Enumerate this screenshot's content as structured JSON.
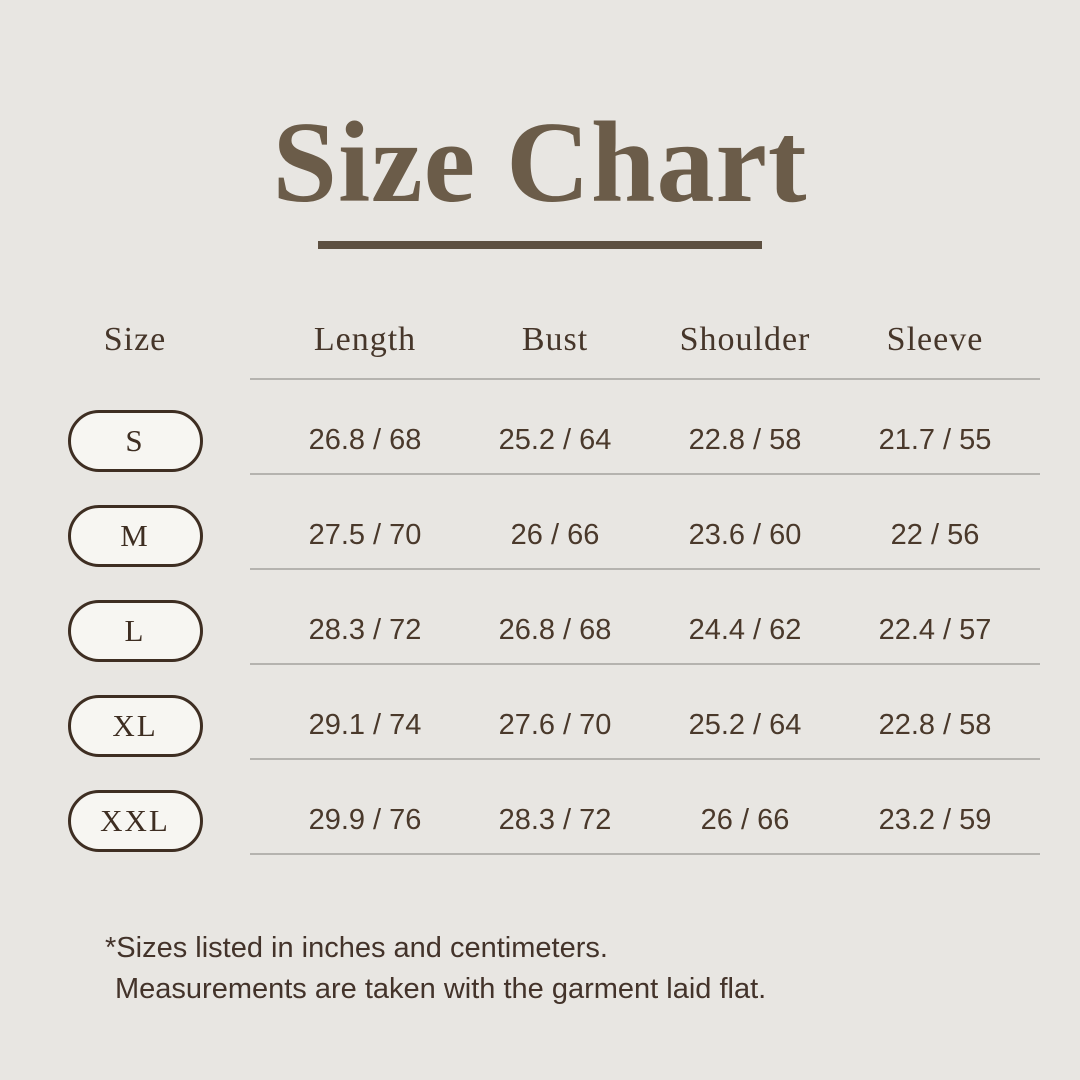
{
  "title": "Size Chart",
  "table": {
    "headers": [
      "Size",
      "Length",
      "Bust",
      "Shoulder",
      "Sleeve"
    ],
    "rows": [
      {
        "size": "S",
        "values": [
          "26.8 / 68",
          "25.2 / 64",
          "22.8 / 58",
          "21.7 / 55"
        ]
      },
      {
        "size": "M",
        "values": [
          "27.5 / 70",
          "26 / 66",
          "23.6 / 60",
          "22 / 56"
        ]
      },
      {
        "size": "L",
        "values": [
          "28.3 / 72",
          "26.8 / 68",
          "24.4 / 62",
          "22.4 / 57"
        ]
      },
      {
        "size": "XL",
        "values": [
          "29.1 / 74",
          "27.6 / 70",
          "25.2 / 64",
          "22.8 / 58"
        ]
      },
      {
        "size": "XXL",
        "values": [
          "29.9 / 76",
          "28.3 / 72",
          "26 / 66",
          "23.2 / 59"
        ]
      }
    ]
  },
  "notes": [
    "*Sizes listed in inches and centimeters.",
    "Measurements are taken with the garment laid flat."
  ],
  "colors": {
    "background": "#e8e6e2",
    "title_text": "#6b5c49",
    "title_rule": "#5d5041",
    "header_text": "#46362a",
    "value_text": "#4a392b",
    "pill_border": "#3e2e22",
    "pill_fill": "#f7f6f2",
    "divider": "#b5b3af",
    "note_text": "#43332a"
  }
}
